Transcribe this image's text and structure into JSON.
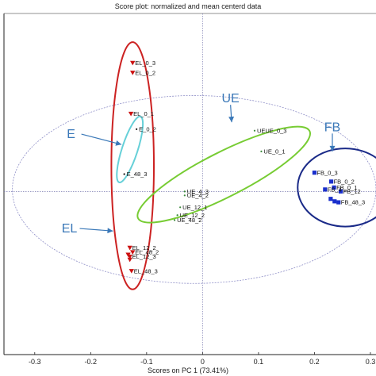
{
  "chart_data": {
    "type": "scatter",
    "title": "Score plot: normalized and mean centerd data",
    "xlabel": "Scores on PC 1 (73.41%)",
    "ylabel": "",
    "xlim": [
      -0.355,
      0.31
    ],
    "ylim": [
      -0.33,
      0.36
    ],
    "x_ticks": [
      "-0.3",
      "-0.2",
      "-0.1",
      "0",
      "0.1",
      "0.2",
      "0.3"
    ],
    "x_tick_values": [
      -0.3,
      -0.2,
      -0.1,
      0,
      0.1,
      0.2,
      0.3
    ],
    "grid": false,
    "reference_lines": {
      "x": 0,
      "y": 0
    },
    "confidence_ellipse": {
      "cx": -0.015,
      "cy": 0.004,
      "rx": 0.325,
      "ry": 0.19,
      "color": "#9090c8"
    },
    "series": [
      {
        "group": "EL",
        "marker": "triangle-down",
        "color": "#cc1111",
        "points": [
          {
            "label": "EL_0_3",
            "x": -0.125,
            "y": 0.26
          },
          {
            "label": "EL_0_2",
            "x": -0.125,
            "y": 0.24
          },
          {
            "label": "EL_0_1",
            "x": -0.128,
            "y": 0.157
          },
          {
            "label": "EL_12_2",
            "x": -0.13,
            "y": -0.114
          },
          {
            "label": "EL_48_2",
            "x": -0.125,
            "y": -0.123
          },
          {
            "label": "EL_12_3",
            "x": -0.13,
            "y": -0.132
          },
          {
            "label": "",
            "x": -0.133,
            "y": -0.128
          },
          {
            "label": "",
            "x": -0.13,
            "y": -0.138
          },
          {
            "label": "EL_48_3",
            "x": -0.127,
            "y": -0.161
          }
        ]
      },
      {
        "group": "E",
        "marker": "dot",
        "color": "#111111",
        "points": [
          {
            "label": "E_0_2",
            "x": -0.118,
            "y": 0.126
          },
          {
            "label": "E_48_3",
            "x": -0.14,
            "y": 0.035
          }
        ]
      },
      {
        "group": "UE",
        "marker": "dot",
        "color": "#3a8a3a",
        "points": [
          {
            "label": "UEUE_0_3",
            "x": 0.093,
            "y": 0.123
          },
          {
            "label": "UE_0_1",
            "x": 0.105,
            "y": 0.081
          },
          {
            "label": "UE_4_3",
            "x": -0.032,
            "y": 0.0
          },
          {
            "label": "UE_4_2",
            "x": -0.032,
            "y": -0.008
          },
          {
            "label": "UE_12_1",
            "x": -0.04,
            "y": -0.032
          },
          {
            "label": "UE_12_2",
            "x": -0.045,
            "y": -0.048
          },
          {
            "label": "UE_48_2",
            "x": -0.05,
            "y": -0.058
          }
        ]
      },
      {
        "group": "FB",
        "marker": "square",
        "color": "#1a2fcc",
        "points": [
          {
            "label": "FB_0_3",
            "x": 0.2,
            "y": 0.038
          },
          {
            "label": "FB_0_2",
            "x": 0.23,
            "y": 0.02
          },
          {
            "label": "FB_0_1",
            "x": 0.235,
            "y": 0.008
          },
          {
            "label": "FB_4",
            "x": 0.219,
            "y": 0.004
          },
          {
            "label": "FB_12",
            "x": 0.247,
            "y": 0.0
          },
          {
            "label": "FB_48_3",
            "x": 0.243,
            "y": -0.022
          },
          {
            "label": "",
            "x": 0.236,
            "y": -0.02
          },
          {
            "label": "",
            "x": 0.229,
            "y": -0.015
          }
        ]
      }
    ],
    "group_ellipses": [
      {
        "group": "EL",
        "cx": -0.125,
        "cy": 0.052,
        "rx": 0.038,
        "ry": 0.25,
        "rotation": 0,
        "color": "#cc2222"
      },
      {
        "group": "E",
        "cx": -0.13,
        "cy": 0.085,
        "rx": 0.014,
        "ry": 0.07,
        "rotation": 18,
        "color": "#66d0d8"
      },
      {
        "group": "UE",
        "cx": 0.038,
        "cy": 0.034,
        "rx": 0.172,
        "ry": 0.045,
        "rotation": -27,
        "color": "#77cc33"
      },
      {
        "group": "FB",
        "cx": 0.255,
        "cy": 0.008,
        "rx": 0.085,
        "ry": 0.079,
        "rotation": 0,
        "color": "#1a2a88"
      }
    ],
    "annotations": [
      {
        "text": "UE",
        "x": 0.05,
        "y": 0.18,
        "color": "#3a78b8",
        "arrow_to": [
          0.052,
          0.14
        ]
      },
      {
        "text": "FB",
        "x": 0.232,
        "y": 0.122,
        "color": "#3a78b8",
        "arrow_to": [
          0.232,
          0.081
        ]
      },
      {
        "text": "E",
        "x": -0.235,
        "y": 0.108,
        "color": "#3a78b8",
        "arrow_to": [
          -0.145,
          0.095
        ]
      },
      {
        "text": "EL",
        "x": -0.238,
        "y": -0.083,
        "color": "#3a78b8",
        "arrow_to": [
          -0.16,
          -0.08
        ]
      }
    ]
  }
}
